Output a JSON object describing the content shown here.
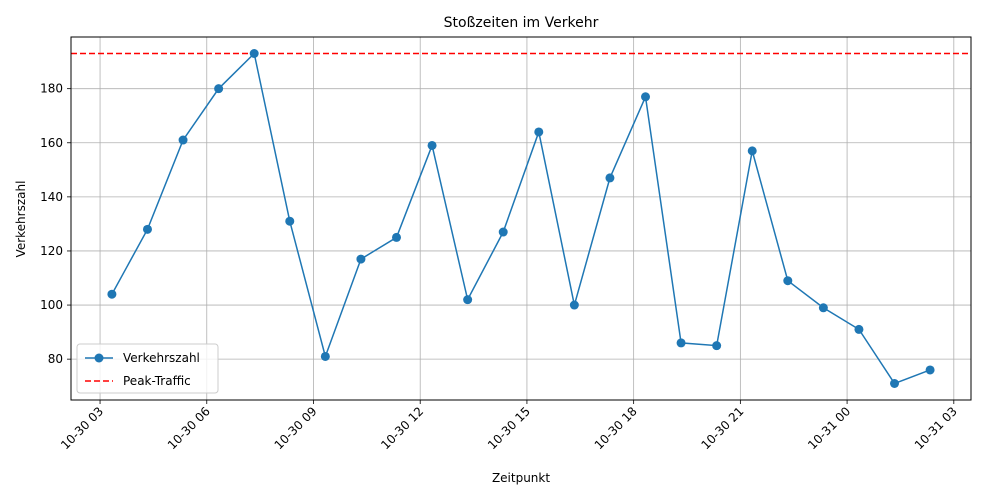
{
  "chart_data": {
    "type": "line",
    "title": "Stoßzeiten im Verkehr",
    "xlabel": "Zeitpunkt",
    "ylabel": "Verkehrszahl",
    "grid": true,
    "legend_placement": "lower-left",
    "x": [
      "2023-10-30 03:20",
      "2023-10-30 04:20",
      "2023-10-30 05:20",
      "2023-10-30 06:20",
      "2023-10-30 07:20",
      "2023-10-30 08:20",
      "2023-10-30 09:20",
      "2023-10-30 10:20",
      "2023-10-30 11:20",
      "2023-10-30 12:20",
      "2023-10-30 13:20",
      "2023-10-30 14:20",
      "2023-10-30 15:20",
      "2023-10-30 16:20",
      "2023-10-30 17:20",
      "2023-10-30 18:20",
      "2023-10-30 19:20",
      "2023-10-30 20:20",
      "2023-10-30 21:20",
      "2023-10-30 22:20",
      "2023-10-30 23:20",
      "2023-10-31 00:20",
      "2023-10-31 01:20",
      "2023-10-31 02:20"
    ],
    "series": [
      {
        "name": "Verkehrszahl",
        "color": "#1f77b4",
        "values": [
          104,
          128,
          161,
          180,
          193,
          131,
          81,
          117,
          125,
          159,
          102,
          127,
          164,
          100,
          147,
          177,
          86,
          85,
          157,
          109,
          99,
          91,
          71,
          76
        ]
      }
    ],
    "reference_line": {
      "name": "Peak-Traffic",
      "value": 193,
      "color": "#ff0000",
      "style": "dashed"
    },
    "x_ticks": [
      {
        "value": "2023-10-30 03:00",
        "label": "10-30 03"
      },
      {
        "value": "2023-10-30 06:00",
        "label": "10-30 06"
      },
      {
        "value": "2023-10-30 09:00",
        "label": "10-30 09"
      },
      {
        "value": "2023-10-30 12:00",
        "label": "10-30 12"
      },
      {
        "value": "2023-10-30 15:00",
        "label": "10-30 15"
      },
      {
        "value": "2023-10-30 18:00",
        "label": "10-30 18"
      },
      {
        "value": "2023-10-30 21:00",
        "label": "10-30 21"
      },
      {
        "value": "2023-10-31 00:00",
        "label": "10-31 00"
      },
      {
        "value": "2023-10-31 03:00",
        "label": "10-31 03"
      }
    ],
    "y_ticks": [
      80,
      100,
      120,
      140,
      160,
      180
    ],
    "xlim": [
      "2023-10-30 02:11",
      "2023-10-31 03:29"
    ],
    "ylim": [
      64.9,
      199.1
    ]
  }
}
